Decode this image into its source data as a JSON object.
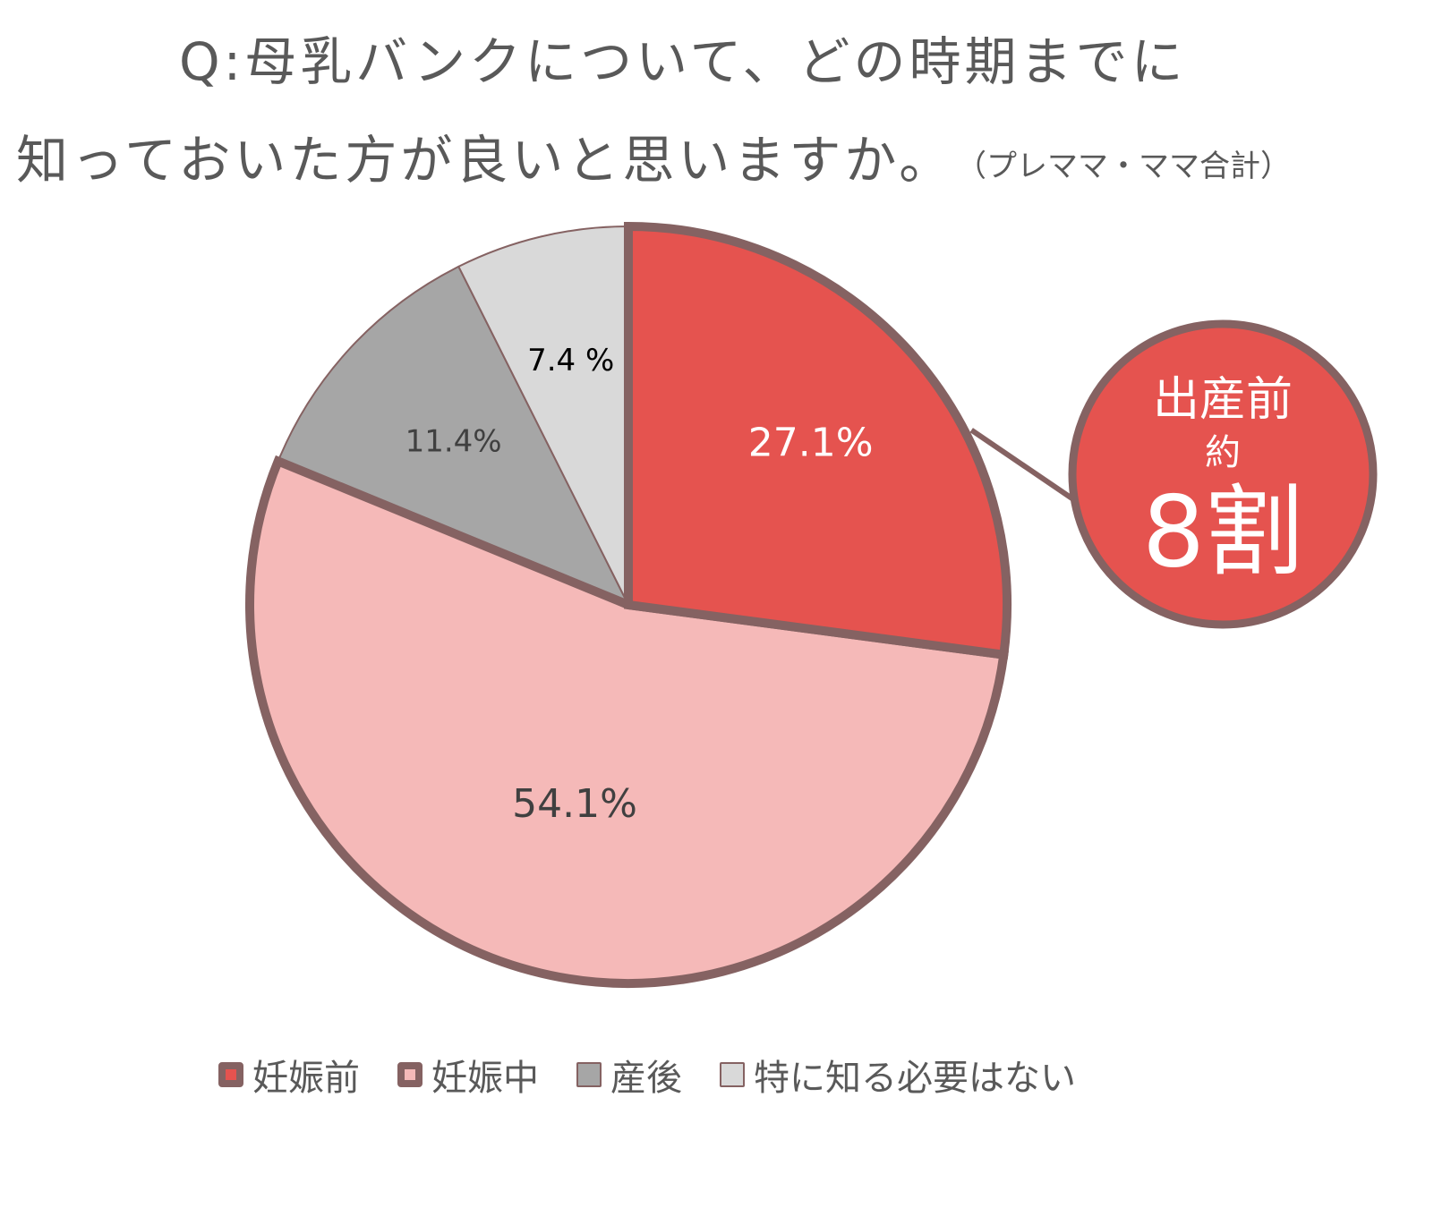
{
  "title": {
    "line1": "Q:母乳バンクについて、どの時期までに",
    "line2": "知っておいた方が良いと思いますか。",
    "subtitle": "（プレママ・ママ合計）"
  },
  "colors": {
    "border": "#856262",
    "before_pregnancy": "#e5534f",
    "during_pregnancy": "#f5b9b8",
    "postpartum": "#a6a6a6",
    "not_needed": "#d9d9d9"
  },
  "chart_data": {
    "type": "pie",
    "title": "Q:母乳バンクについて、どの時期までに知っておいた方が良いと思いますか。",
    "subtitle": "（プレママ・ママ合計）",
    "categories": [
      "妊娠前",
      "妊娠中",
      "産後",
      "特に知る必要はない"
    ],
    "values": [
      27.1,
      54.1,
      11.4,
      7.4
    ],
    "data_labels": [
      "27.1%",
      "54.1%",
      "11.4%",
      "7.4 %"
    ],
    "legend_position": "bottom",
    "start_angle": "12 o'clock",
    "direction": "clockwise",
    "highlighted": [
      "妊娠前",
      "妊娠中"
    ],
    "annotation": {
      "line1": "出産前",
      "line2": "約",
      "line3": "8割"
    }
  }
}
